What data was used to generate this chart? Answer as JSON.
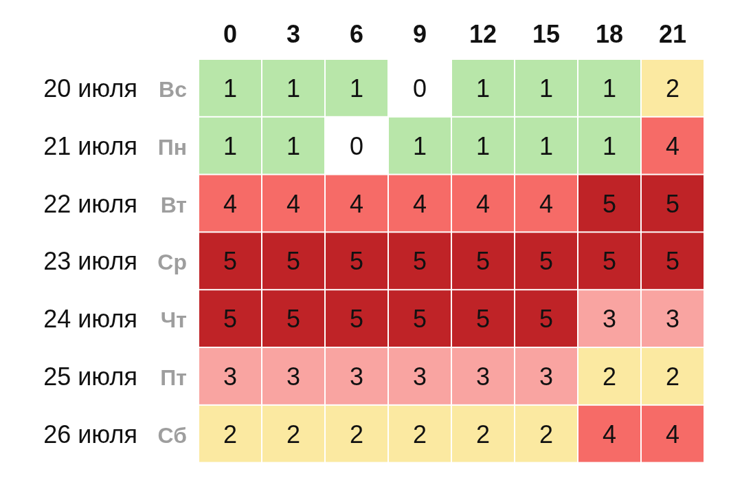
{
  "chart_data": {
    "type": "heatmap",
    "categories": [
      "0",
      "3",
      "6",
      "9",
      "12",
      "15",
      "18",
      "21"
    ],
    "y_categories": [
      "20 июля",
      "21 июля",
      "22 июля",
      "23 июля",
      "24 июля",
      "25 июля",
      "26 июля"
    ],
    "y2_categories": [
      "Вс",
      "Пн",
      "Вт",
      "Ср",
      "Чт",
      "Пт",
      "Сб"
    ],
    "cells": [
      [
        1,
        1,
        1,
        0,
        1,
        1,
        1,
        2
      ],
      [
        1,
        1,
        0,
        1,
        1,
        1,
        1,
        4
      ],
      [
        4,
        4,
        4,
        4,
        4,
        4,
        5,
        5
      ],
      [
        5,
        5,
        5,
        5,
        5,
        5,
        5,
        5
      ],
      [
        5,
        5,
        5,
        5,
        5,
        5,
        3,
        3
      ],
      [
        3,
        3,
        3,
        3,
        3,
        3,
        2,
        2
      ],
      [
        2,
        2,
        2,
        2,
        2,
        2,
        4,
        4
      ]
    ],
    "colors": [
      "#ffffff",
      "#b8e6a9",
      "#fbe9a1",
      "#f9a4a1",
      "#f66b67",
      "#bf2327"
    ],
    "data_labels": true
  }
}
